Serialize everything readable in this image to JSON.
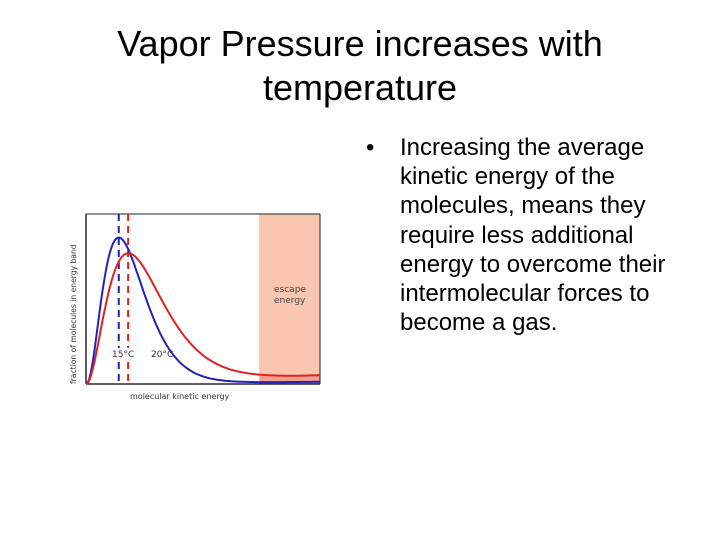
{
  "title": {
    "line1": "Vapor Pressure increases with",
    "line2": "temperature"
  },
  "bullets": [
    "Increasing the average kinetic energy of the molecules, means they require less additional energy to overcome their intermolecular forces to become a gas."
  ],
  "bullet_symbol": "•",
  "chart_data": {
    "type": "line",
    "xlabel": "molecular kinetic energy",
    "ylabel": "fraction of molecules in energy band",
    "annotation": "escape energy",
    "annotation_lines": [
      "escape",
      "energy"
    ],
    "series": [
      {
        "name": "15°C",
        "color": "#2222bb",
        "peak": 0.14,
        "shape": 2.4
      },
      {
        "name": "20°C",
        "color": "#dd2222",
        "peak": 0.18,
        "shape": 2.2
      }
    ],
    "escape_threshold": 0.74,
    "colors": {
      "escape_region": "#f9c6b0",
      "tail_overlap": "#8a7dd8"
    }
  }
}
